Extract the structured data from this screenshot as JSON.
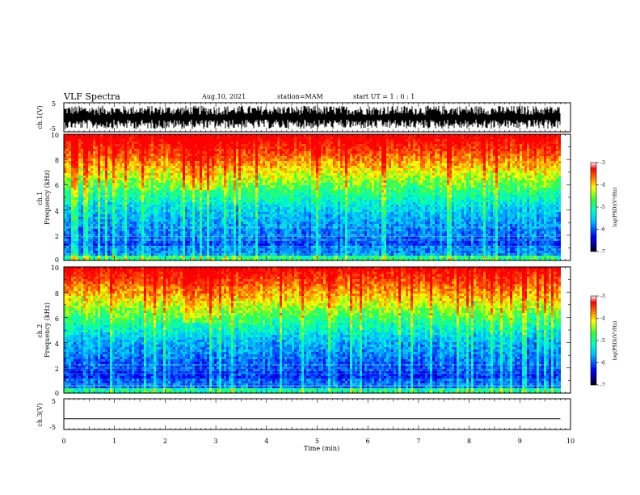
{
  "header": {
    "title": "VLF Spectra",
    "date": "Aug.10, 2021",
    "station": "station=MAM",
    "start": "start  UT =   1 : 0  : 1"
  },
  "chart_data": [
    {
      "type": "line",
      "panel": "ch1-waveform",
      "ylabel": "ch.1(V)",
      "ylim": [
        -5,
        5
      ],
      "yticks": [
        "5",
        "-5"
      ],
      "signal": "noise, roughly -4 to 4 V across 0-9.8 min"
    },
    {
      "type": "heatmap",
      "panel": "ch1-spectrogram",
      "ylabel": "ch.1\nFrequency (kHz)",
      "ylim": [
        0,
        10
      ],
      "yticks": [
        "0",
        "2",
        "4",
        "6",
        "8",
        "10"
      ],
      "xlim": [
        0,
        10
      ],
      "data_end_min": 9.8,
      "colorbar": {
        "label": "log(PSD)(V²/Hz)",
        "range": [
          -7,
          -3
        ],
        "ticks": [
          "-3",
          "-4",
          "-5",
          "-6",
          "-7"
        ]
      }
    },
    {
      "type": "heatmap",
      "panel": "ch2-spectrogram",
      "ylabel": "ch.2\nFrequency (kHz)",
      "ylim": [
        0,
        10
      ],
      "yticks": [
        "0",
        "2",
        "4",
        "6",
        "8",
        "10"
      ],
      "xlim": [
        0,
        10
      ],
      "data_end_min": 9.8,
      "colorbar": {
        "label": "log(PSD)(V²/Hz)",
        "range": [
          -7,
          -3
        ],
        "ticks": [
          "-3",
          "-4",
          "-5",
          "-6",
          "-7"
        ]
      }
    },
    {
      "type": "line",
      "panel": "ch3-waveform",
      "ylabel": "ch.3(V)",
      "ylim": [
        -5,
        5
      ],
      "yticks": [
        "5",
        "-5"
      ],
      "x": [
        0,
        9.8
      ],
      "y": [
        -1.5,
        -1.5
      ]
    }
  ],
  "xaxis": {
    "label": "Time (min)",
    "ticks": [
      "0",
      "1",
      "2",
      "3",
      "4",
      "5",
      "6",
      "7",
      "8",
      "9",
      "10"
    ]
  }
}
